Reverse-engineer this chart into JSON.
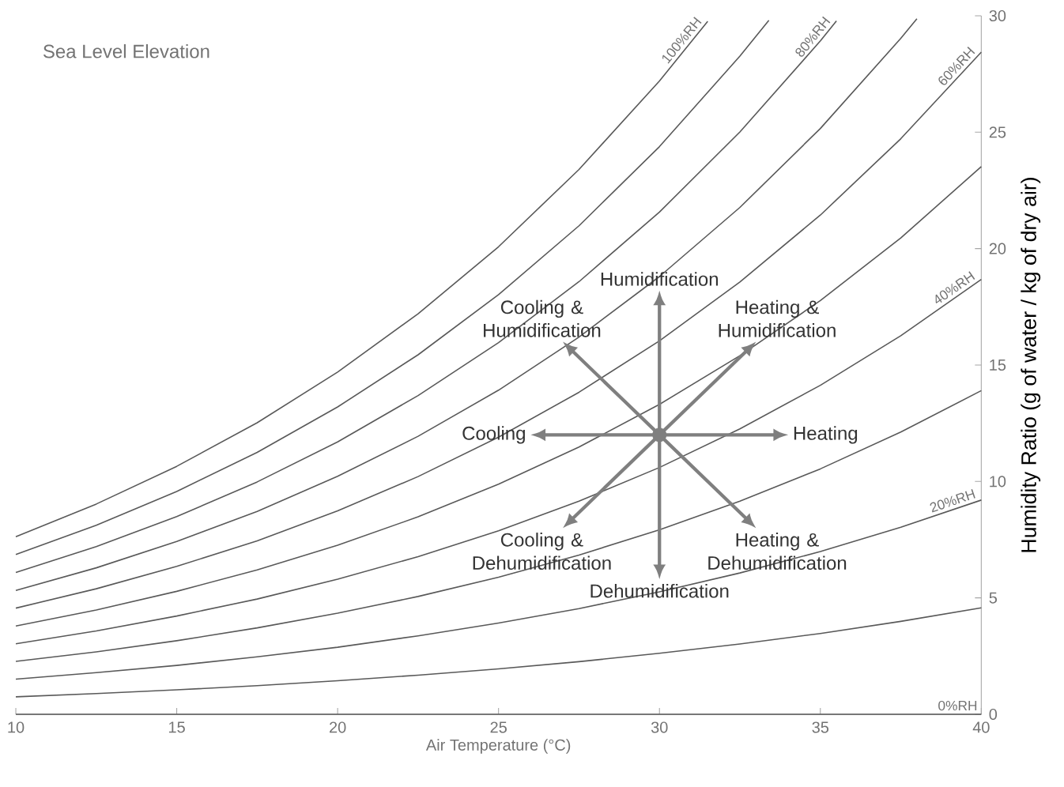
{
  "chart_data": {
    "type": "line",
    "xlabel": "Air Temperature (°C)",
    "ylabel": "Humidity Ratio (g of water / kg of dry air)",
    "xlim": [
      10,
      40
    ],
    "ylim": [
      0,
      30
    ],
    "xticks": [
      10,
      15,
      20,
      25,
      30,
      35,
      40
    ],
    "yticks": [
      0,
      5,
      10,
      15,
      20,
      25,
      30
    ],
    "grid": false,
    "series": [
      {
        "name": "0%RH",
        "color": "#595959",
        "x": [
          10,
          40
        ],
        "values": [
          0,
          0
        ]
      },
      {
        "color": "#595959",
        "x": [
          10,
          12.5,
          15,
          17.5,
          20,
          22.5,
          25,
          27.5,
          30,
          32.5,
          35,
          37.5,
          40
        ],
        "values": [
          0.75,
          0.89,
          1.05,
          1.23,
          1.44,
          1.68,
          1.95,
          2.26,
          2.62,
          3.02,
          3.47,
          3.99,
          4.57
        ]
      },
      {
        "name": "20%RH",
        "color": "#595959",
        "x": [
          10,
          12.5,
          15,
          17.5,
          20,
          22.5,
          25,
          27.5,
          30,
          32.5,
          35,
          37.5,
          40
        ],
        "values": [
          1.51,
          1.79,
          2.1,
          2.47,
          2.88,
          3.37,
          3.92,
          4.54,
          5.26,
          6.07,
          6.99,
          8.03,
          9.2
        ]
      },
      {
        "color": "#595959",
        "x": [
          10,
          12.5,
          15,
          17.5,
          20,
          22.5,
          25,
          27.5,
          30,
          32.5,
          35,
          37.5,
          40
        ],
        "values": [
          2.27,
          2.68,
          3.16,
          3.71,
          4.34,
          5.06,
          5.89,
          6.84,
          7.92,
          9.15,
          10.54,
          12.12,
          13.9
        ]
      },
      {
        "name": "40%RH",
        "color": "#595959",
        "x": [
          10,
          12.5,
          15,
          17.5,
          20,
          22.5,
          25,
          27.5,
          30,
          32.5,
          35,
          37.5,
          40
        ],
        "values": [
          3.03,
          3.58,
          4.22,
          4.95,
          5.8,
          6.77,
          7.88,
          9.15,
          10.6,
          12.26,
          14.13,
          16.26,
          18.68
        ]
      },
      {
        "color": "#595959",
        "x": [
          10,
          12.5,
          15,
          17.5,
          20,
          22.5,
          25,
          27.5,
          30,
          32.5,
          35,
          37.5,
          40
        ],
        "values": [
          3.79,
          4.48,
          5.28,
          6.2,
          7.26,
          8.48,
          9.88,
          11.48,
          13.31,
          15.4,
          17.77,
          20.46,
          23.52
        ]
      },
      {
        "name": "60%RH",
        "color": "#595959",
        "x": [
          10,
          12.5,
          15,
          17.5,
          20,
          22.5,
          25,
          27.5,
          30,
          32.5,
          35,
          37.5,
          40
        ],
        "values": [
          4.56,
          5.39,
          6.35,
          7.45,
          8.74,
          10.21,
          11.9,
          13.83,
          16.04,
          18.57,
          21.44,
          24.72,
          28.44
        ]
      },
      {
        "color": "#595959",
        "x": [
          10,
          12.5,
          15,
          17.5,
          20,
          22.5,
          25,
          27.5,
          30,
          32.5,
          35,
          37.5,
          38
        ],
        "values": [
          5.32,
          6.29,
          7.42,
          8.71,
          10.22,
          11.94,
          13.92,
          16.2,
          18.8,
          21.77,
          25.16,
          29.03,
          29.87
        ]
      },
      {
        "name": "80%RH",
        "color": "#595959",
        "x": [
          10,
          12.5,
          15,
          17.5,
          20,
          22.5,
          25,
          27.5,
          30,
          32.5,
          35,
          35.5
        ],
        "values": [
          6.09,
          7.2,
          8.49,
          9.98,
          11.7,
          13.69,
          15.96,
          18.58,
          21.57,
          25.01,
          28.92,
          29.78
        ]
      },
      {
        "color": "#595959",
        "x": [
          10,
          12.5,
          15,
          17.5,
          20,
          22.5,
          25,
          27.5,
          30,
          32.5,
          33.4
        ],
        "values": [
          6.86,
          8.12,
          9.57,
          11.25,
          13.2,
          15.44,
          18.02,
          20.98,
          24.38,
          28.27,
          29.8
        ]
      },
      {
        "name": "100%RH",
        "color": "#595959",
        "x": [
          10,
          12.5,
          15,
          17.5,
          20,
          22.5,
          25,
          27.5,
          30,
          31.5
        ],
        "values": [
          7.63,
          9.03,
          10.65,
          12.52,
          14.7,
          17.2,
          20.08,
          23.4,
          27.2,
          29.76
        ]
      },
      {
        "type": "scatter",
        "color": "#7f7f7f",
        "x": [
          30
        ],
        "values": [
          12
        ]
      }
    ],
    "annotations": [
      "Sea Level Elevation",
      "Humidification",
      "Heating & Humidification",
      "Heating",
      "Heating & Dehumidification",
      "Dehumidification",
      "Cooling & Dehumidification",
      "Cooling",
      "Cooling & Humidification"
    ]
  }
}
